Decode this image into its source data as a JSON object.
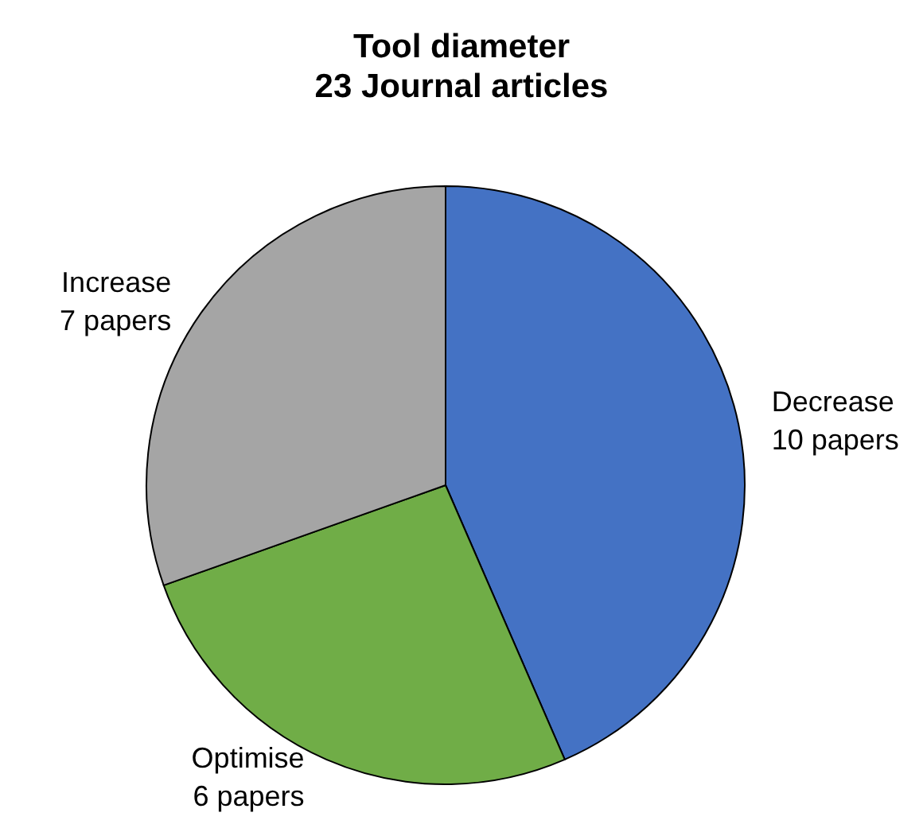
{
  "chart_data": {
    "type": "pie",
    "title": "Tool diameter",
    "subtitle": "23 Journal articles",
    "categories": [
      "Decrease",
      "Optimise",
      "Increase"
    ],
    "values": [
      10,
      6,
      7
    ],
    "value_labels": [
      "10 papers",
      "6 papers",
      "7 papers"
    ],
    "colors": [
      "#4472c4",
      "#70ad47",
      "#a5a5a5"
    ],
    "legend": false
  }
}
